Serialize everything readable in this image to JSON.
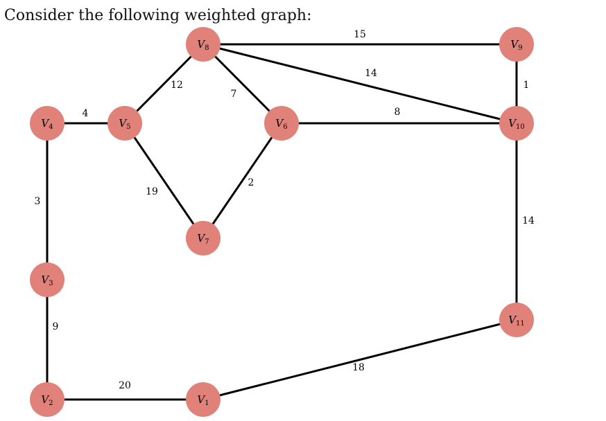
{
  "title": "Consider the following weighted graph:",
  "colors": {
    "node": "#e0827a",
    "edge": "#000000"
  },
  "nodes": [
    {
      "id": "V1",
      "label": "V",
      "sub": "1"
    },
    {
      "id": "V2",
      "label": "V",
      "sub": "2"
    },
    {
      "id": "V3",
      "label": "V",
      "sub": "3"
    },
    {
      "id": "V4",
      "label": "V",
      "sub": "4"
    },
    {
      "id": "V5",
      "label": "V",
      "sub": "5"
    },
    {
      "id": "V6",
      "label": "V",
      "sub": "6"
    },
    {
      "id": "V7",
      "label": "V",
      "sub": "7"
    },
    {
      "id": "V8",
      "label": "V",
      "sub": "8"
    },
    {
      "id": "V9",
      "label": "V",
      "sub": "9"
    },
    {
      "id": "V10",
      "label": "V",
      "sub": "10"
    },
    {
      "id": "V11",
      "label": "V",
      "sub": "11"
    }
  ],
  "edges": [
    {
      "from": "V8",
      "to": "V9",
      "weight": "15"
    },
    {
      "from": "V8",
      "to": "V10",
      "weight": "14"
    },
    {
      "from": "V9",
      "to": "V10",
      "weight": "1"
    },
    {
      "from": "V8",
      "to": "V5",
      "weight": "12"
    },
    {
      "from": "V8",
      "to": "V6",
      "weight": "7"
    },
    {
      "from": "V6",
      "to": "V10",
      "weight": "8"
    },
    {
      "from": "V4",
      "to": "V5",
      "weight": "4"
    },
    {
      "from": "V5",
      "to": "V7",
      "weight": "19"
    },
    {
      "from": "V6",
      "to": "V7",
      "weight": "2"
    },
    {
      "from": "V4",
      "to": "V3",
      "weight": "3"
    },
    {
      "from": "V10",
      "to": "V11",
      "weight": "14"
    },
    {
      "from": "V3",
      "to": "V2",
      "weight": "9"
    },
    {
      "from": "V11",
      "to": "V1",
      "weight": "18"
    },
    {
      "from": "V2",
      "to": "V1",
      "weight": "20"
    }
  ]
}
